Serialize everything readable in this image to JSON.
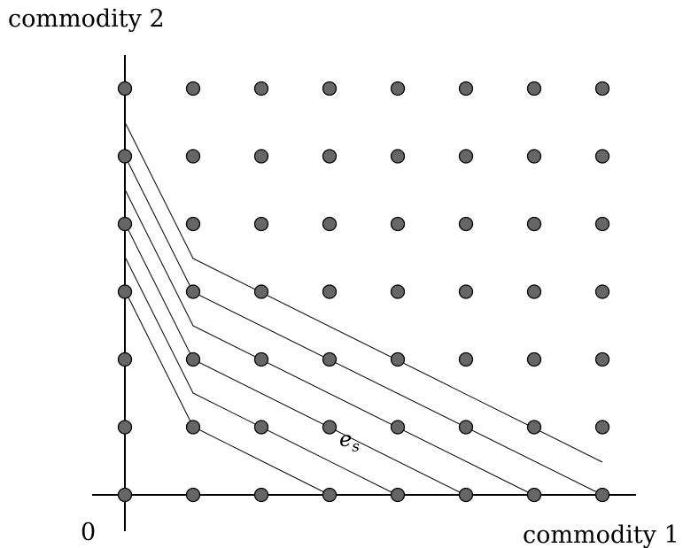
{
  "labels": {
    "y_axis": "commodity 2",
    "x_axis": "commodity 1",
    "origin": "0",
    "point_main": "e",
    "point_sub": "s"
  },
  "lattice": {
    "columns": 8,
    "rows": 7
  },
  "colors": {
    "point_fill": "#666666",
    "line": "#000000",
    "background": "#ffffff"
  }
}
